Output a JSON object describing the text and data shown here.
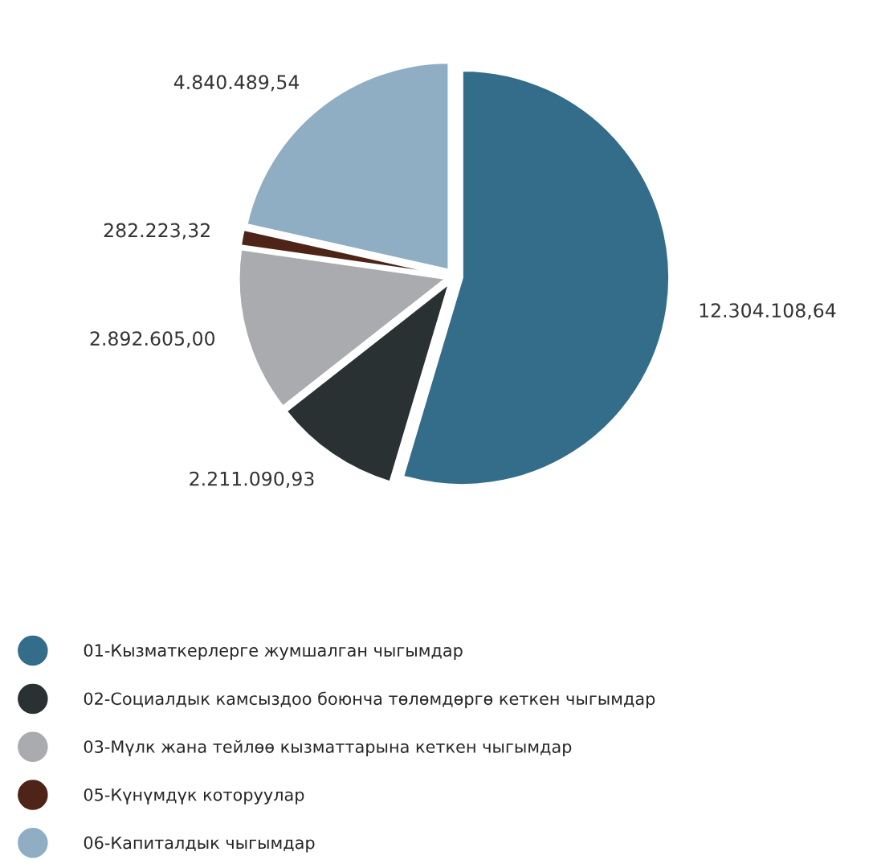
{
  "chart_data": {
    "type": "pie",
    "categories": [
      "01-Кызматкерлерге жумшалган чыгымдар",
      "02-Социалдык камсыздоо боюнча төлөмдөргө кеткен чыгымдар",
      "03-Мүлк жана тейлөө кызматтарына кеткен чыгымдар",
      "05-Күнүмдүк которуулар",
      "06-Капиталдык чыгымдар"
    ],
    "values": [
      12304108.64,
      2211090.93,
      2892605.0,
      282223.32,
      4840489.54
    ],
    "value_labels": [
      "12.304.108,64",
      "2.211.090,93",
      "2.892.605,00",
      "282.223,32",
      "4.840.489,54"
    ],
    "colors": [
      "#336d89",
      "#293133",
      "#aaabae",
      "#4e2318",
      "#8fadc3"
    ],
    "legend": "bottom left"
  }
}
